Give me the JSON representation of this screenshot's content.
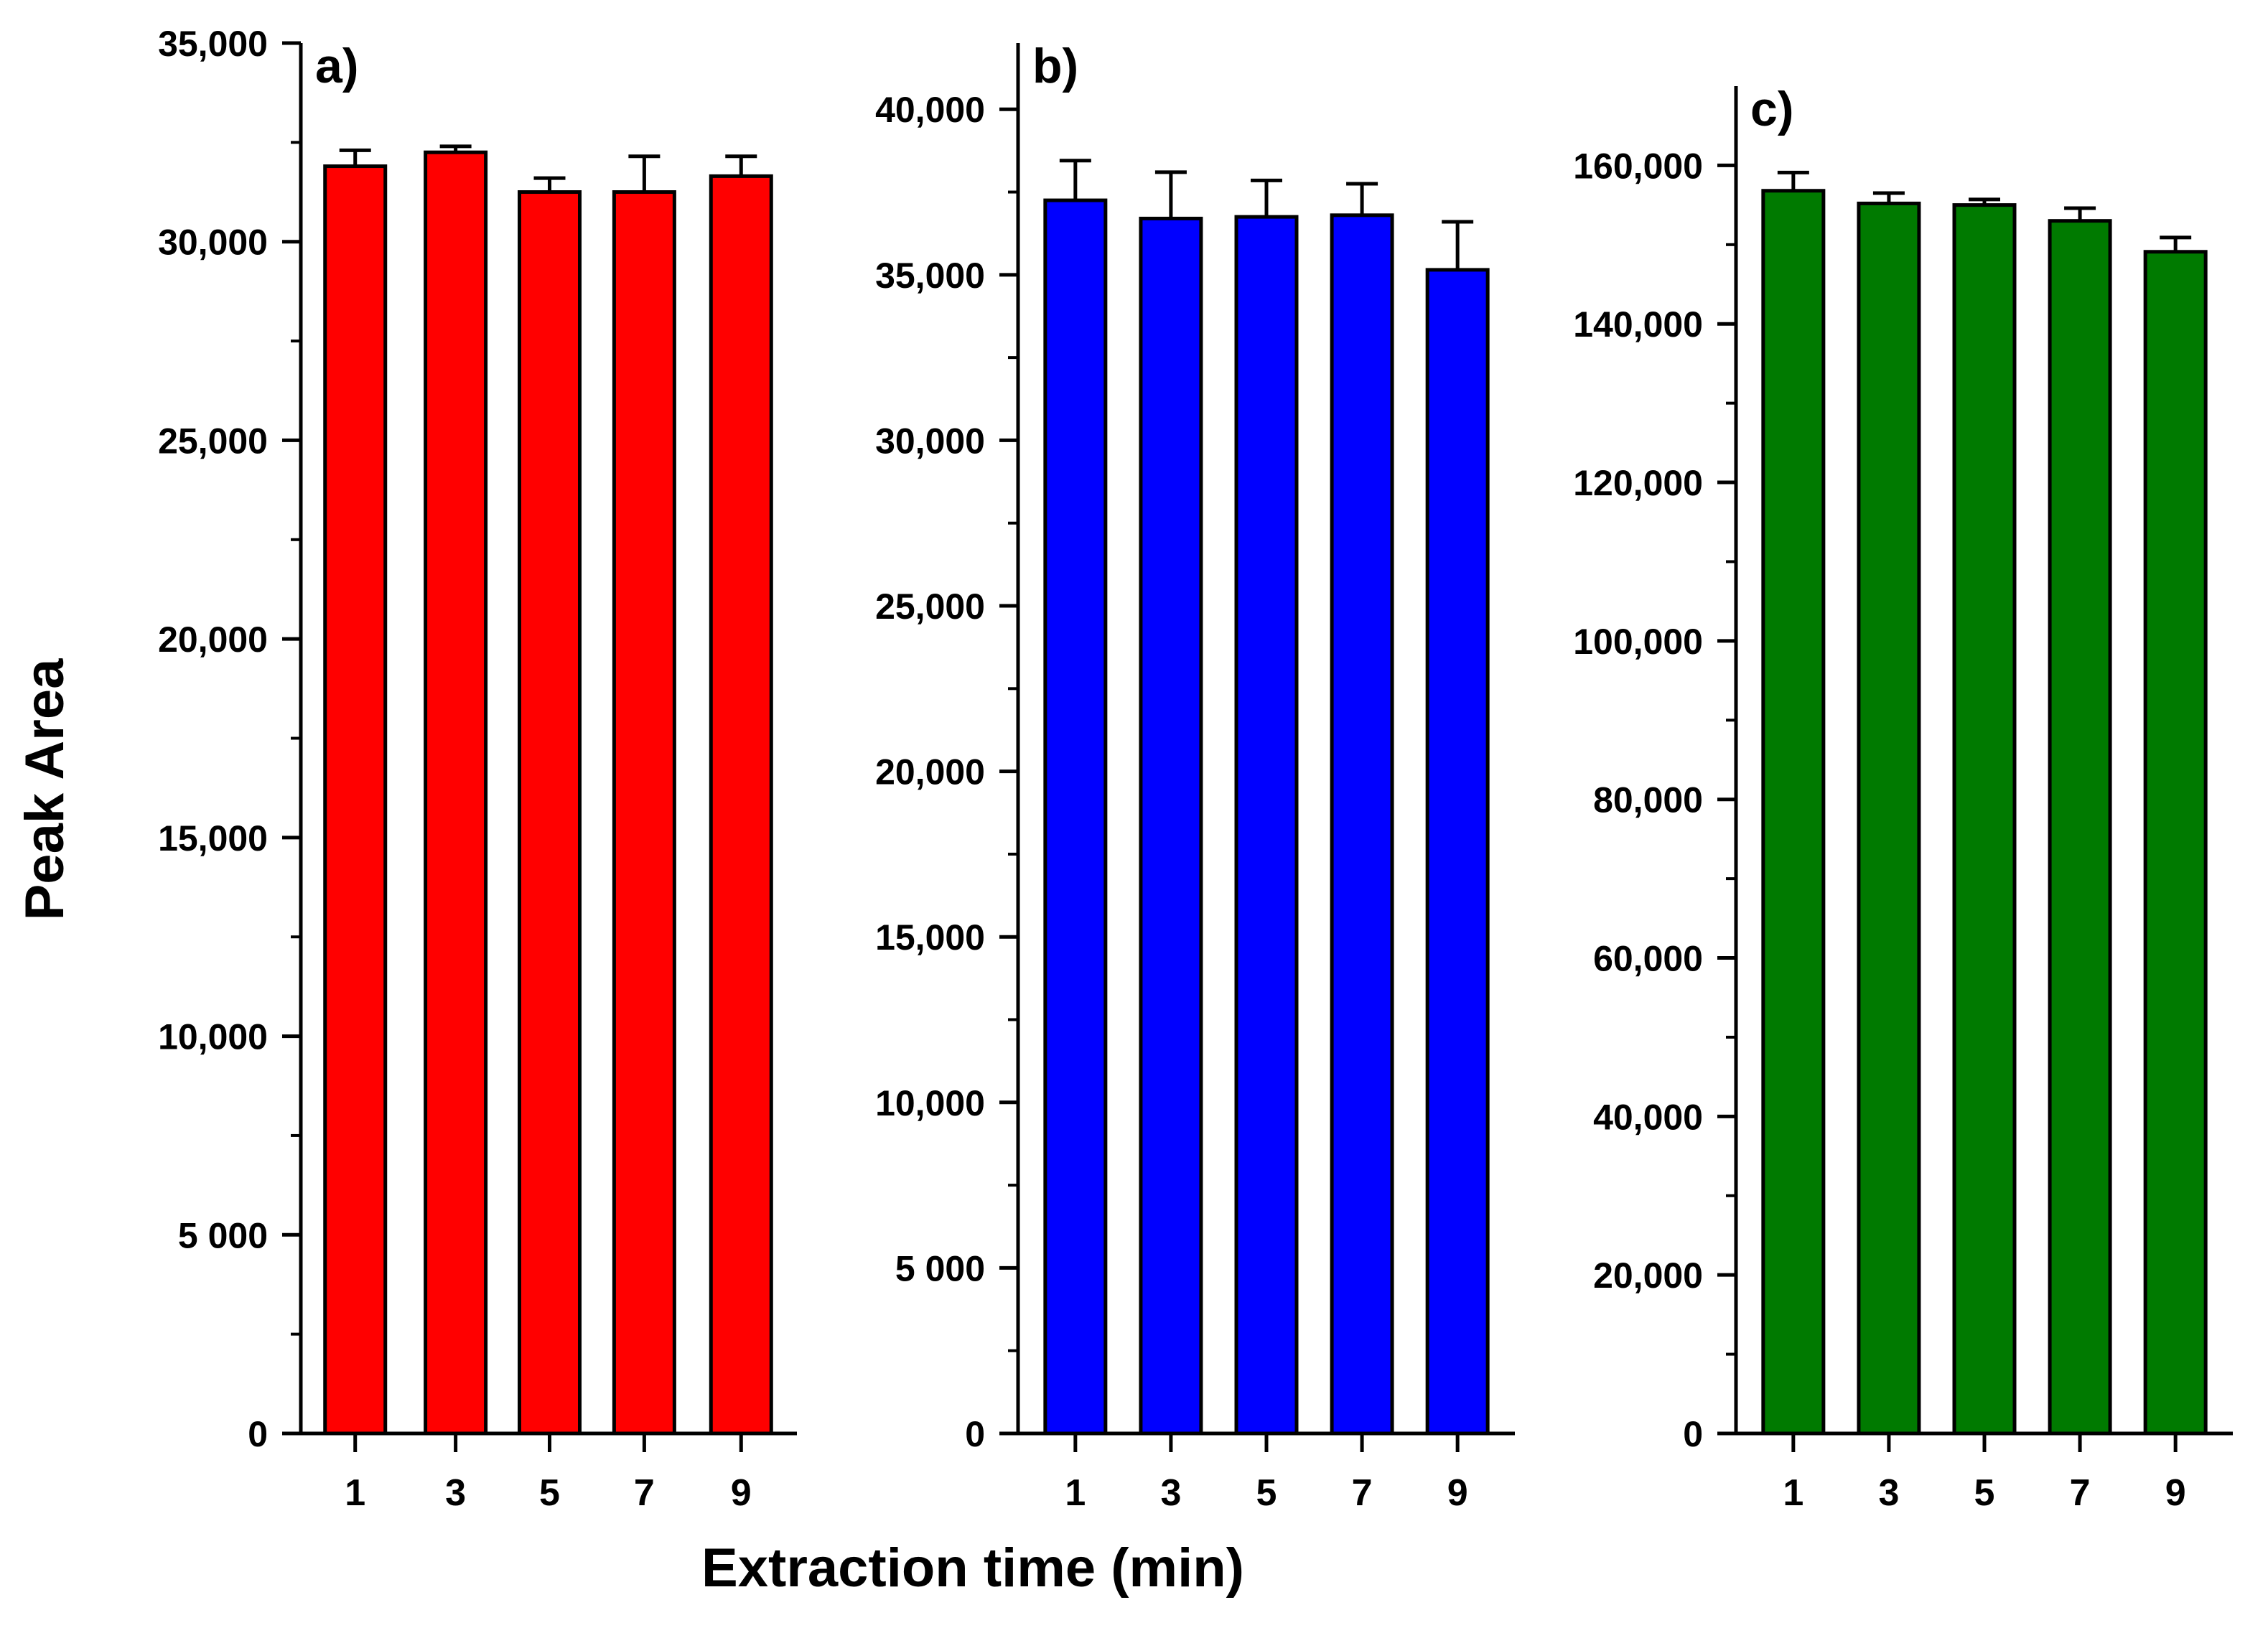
{
  "chart_data": {
    "type": "bar",
    "xlabel": "Extraction time (min)",
    "ylabel": "Peak Area",
    "panels": [
      {
        "label": "a)",
        "color": "#FF0000",
        "categories": [
          "1",
          "3",
          "5",
          "7",
          "9"
        ],
        "values": [
          31900,
          32250,
          31250,
          31250,
          31650
        ],
        "errors": [
          400,
          150,
          350,
          900,
          500
        ],
        "ylim": [
          0,
          35000
        ],
        "yticks": [
          0,
          5000,
          10000,
          15000,
          20000,
          25000,
          30000,
          35000
        ],
        "ytick_labels": [
          "0",
          "5 000",
          "10,000",
          "15,000",
          "20,000",
          "25,000",
          "30,000",
          "35,000"
        ]
      },
      {
        "label": "b)",
        "color": "#0000FF",
        "categories": [
          "1",
          "3",
          "5",
          "7",
          "9"
        ],
        "values": [
          37250,
          36700,
          36750,
          36800,
          35150
        ],
        "errors": [
          1200,
          1400,
          1100,
          950,
          1450
        ],
        "ylim": [
          0,
          42000
        ],
        "yticks": [
          0,
          5000,
          10000,
          15000,
          20000,
          25000,
          30000,
          35000,
          40000
        ],
        "ytick_labels": [
          "0",
          "5 000",
          "10,000",
          "15,000",
          "20,000",
          "25,000",
          "30,000",
          "35,000",
          "40,000"
        ]
      },
      {
        "label": "c)",
        "color": "#007A00",
        "categories": [
          "1",
          "3",
          "5",
          "7",
          "9"
        ],
        "values": [
          156800,
          155200,
          155000,
          153000,
          149100
        ],
        "errors": [
          2300,
          1300,
          700,
          1600,
          1800
        ],
        "ylim": [
          0,
          170000
        ],
        "yticks": [
          0,
          20000,
          40000,
          60000,
          80000,
          100000,
          120000,
          140000,
          160000
        ],
        "ytick_labels": [
          "0",
          "20,000",
          "40,000",
          "60,000",
          "80,000",
          "100,000",
          "120,000",
          "140,000",
          "160,000"
        ]
      }
    ]
  }
}
